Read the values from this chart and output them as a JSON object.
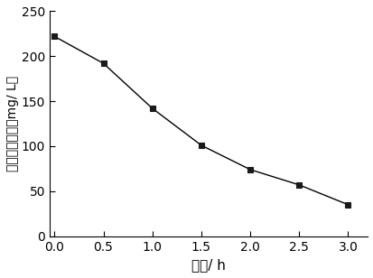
{
  "x": [
    0.0,
    0.5,
    1.0,
    1.5,
    2.0,
    2.5,
    3.0
  ],
  "y": [
    222,
    192,
    142,
    101,
    74,
    57,
    35
  ],
  "xlabel": "时间/ h",
  "ylabel": "化学耗氧量／（mg/ L）",
  "xlim": [
    -0.05,
    3.2
  ],
  "ylim": [
    0,
    250
  ],
  "xticks": [
    0.0,
    0.5,
    1.0,
    1.5,
    2.0,
    2.5,
    3.0
  ],
  "yticks": [
    0,
    50,
    100,
    150,
    200,
    250
  ],
  "line_color": "#000000",
  "marker": "s",
  "marker_color": "#1a1a1a",
  "marker_size": 5,
  "linewidth": 1.0,
  "background_color": "#ffffff",
  "tick_labelsize": 10,
  "xlabel_fontsize": 11,
  "ylabel_fontsize": 10
}
